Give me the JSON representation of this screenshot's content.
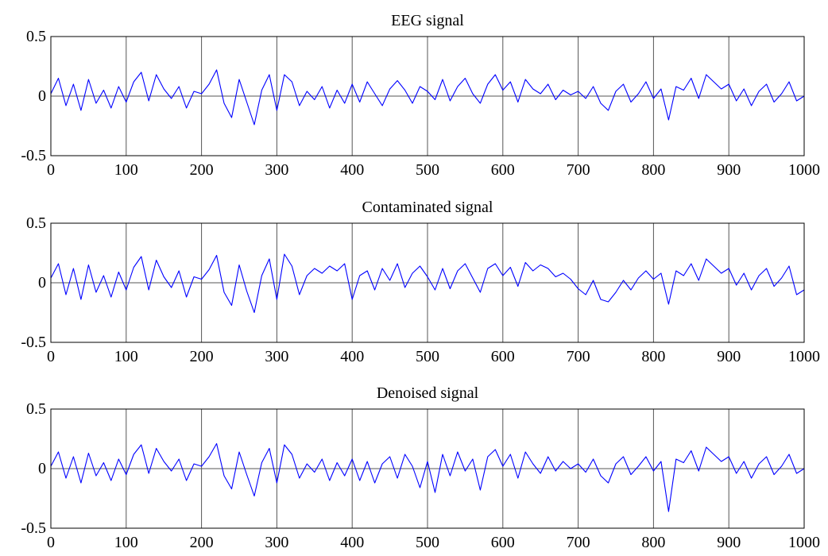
{
  "chart_data": [
    {
      "type": "line",
      "title": "EEG signal",
      "xlim": [
        0,
        1000
      ],
      "ylim": [
        -0.5,
        0.5
      ],
      "xticks": [
        "0",
        "100",
        "200",
        "300",
        "400",
        "500",
        "600",
        "700",
        "800",
        "900",
        "1000"
      ],
      "yticks": [
        "0.5",
        "0",
        "-0.5"
      ],
      "grid": "vertical",
      "color": "#0000ff",
      "series": [
        {
          "x": [
            0,
            10,
            20,
            30,
            40,
            50,
            60,
            70,
            80,
            90,
            100,
            110,
            120,
            130,
            140,
            150,
            160,
            170,
            180,
            190,
            200,
            210,
            220,
            230,
            240,
            250,
            260,
            270,
            280,
            290,
            300,
            310,
            320,
            330,
            340,
            350,
            360,
            370,
            380,
            390,
            400,
            410,
            420,
            430,
            440,
            450,
            460,
            470,
            480,
            490,
            500,
            510,
            520,
            530,
            540,
            550,
            560,
            570,
            580,
            590,
            600,
            610,
            620,
            630,
            640,
            650,
            660,
            670,
            680,
            690,
            700,
            710,
            720,
            730,
            740,
            750,
            760,
            770,
            780,
            790,
            800,
            810,
            820,
            830,
            840,
            850,
            860,
            870,
            880,
            890,
            900,
            910,
            920,
            930,
            940,
            950,
            960,
            970,
            980,
            990,
            1000
          ],
          "values": [
            0.02,
            0.15,
            -0.08,
            0.1,
            -0.12,
            0.14,
            -0.06,
            0.05,
            -0.1,
            0.08,
            -0.05,
            0.12,
            0.2,
            -0.04,
            0.18,
            0.06,
            -0.02,
            0.08,
            -0.1,
            0.04,
            0.02,
            0.1,
            0.22,
            -0.06,
            -0.18,
            0.14,
            -0.05,
            -0.24,
            0.05,
            0.18,
            -0.12,
            0.18,
            0.12,
            -0.08,
            0.04,
            -0.03,
            0.08,
            -0.1,
            0.05,
            -0.06,
            0.1,
            -0.05,
            0.12,
            0.02,
            -0.08,
            0.06,
            0.13,
            0.05,
            -0.06,
            0.08,
            0.04,
            -0.03,
            0.14,
            -0.04,
            0.08,
            0.15,
            0.02,
            -0.06,
            0.1,
            0.18,
            0.05,
            0.12,
            -0.05,
            0.14,
            0.06,
            0.02,
            0.1,
            -0.03,
            0.05,
            0.01,
            0.04,
            -0.02,
            0.08,
            -0.06,
            -0.12,
            0.04,
            0.1,
            -0.05,
            0.02,
            0.12,
            -0.02,
            0.06,
            -0.2,
            0.08,
            0.05,
            0.15,
            -0.02,
            0.18,
            0.12,
            0.06,
            0.1,
            -0.04,
            0.06,
            -0.08,
            0.04,
            0.1,
            -0.05,
            0.02,
            0.12,
            -0.04,
            0.0
          ]
        }
      ]
    },
    {
      "type": "line",
      "title": "Contaminated signal",
      "xlim": [
        0,
        1000
      ],
      "ylim": [
        -0.5,
        0.5
      ],
      "xticks": [
        "0",
        "100",
        "200",
        "300",
        "400",
        "500",
        "600",
        "700",
        "800",
        "900",
        "1000"
      ],
      "yticks": [
        "0.5",
        "0",
        "-0.5"
      ],
      "grid": "vertical",
      "color": "#0000ff",
      "series": [
        {
          "x": [
            0,
            10,
            20,
            30,
            40,
            50,
            60,
            70,
            80,
            90,
            100,
            110,
            120,
            130,
            140,
            150,
            160,
            170,
            180,
            190,
            200,
            210,
            220,
            230,
            240,
            250,
            260,
            270,
            280,
            290,
            300,
            310,
            320,
            330,
            340,
            350,
            360,
            370,
            380,
            390,
            400,
            410,
            420,
            430,
            440,
            450,
            460,
            470,
            480,
            490,
            500,
            510,
            520,
            530,
            540,
            550,
            560,
            570,
            580,
            590,
            600,
            610,
            620,
            630,
            640,
            650,
            660,
            670,
            680,
            690,
            700,
            710,
            720,
            730,
            740,
            750,
            760,
            770,
            780,
            790,
            800,
            810,
            820,
            830,
            840,
            850,
            860,
            870,
            880,
            890,
            900,
            910,
            920,
            930,
            940,
            950,
            960,
            970,
            980,
            990,
            1000
          ],
          "values": [
            0.04,
            0.16,
            -0.1,
            0.12,
            -0.14,
            0.15,
            -0.08,
            0.06,
            -0.12,
            0.09,
            -0.06,
            0.13,
            0.22,
            -0.06,
            0.19,
            0.05,
            -0.04,
            0.1,
            -0.12,
            0.05,
            0.03,
            0.11,
            0.23,
            -0.08,
            -0.19,
            0.15,
            -0.07,
            -0.25,
            0.06,
            0.2,
            -0.14,
            0.24,
            0.14,
            -0.1,
            0.06,
            0.12,
            0.08,
            0.14,
            0.1,
            0.16,
            -0.14,
            0.06,
            0.1,
            -0.06,
            0.12,
            0.02,
            0.16,
            -0.04,
            0.08,
            0.14,
            0.05,
            -0.06,
            0.12,
            -0.05,
            0.1,
            0.16,
            0.04,
            -0.08,
            0.12,
            0.16,
            0.06,
            0.13,
            -0.03,
            0.17,
            0.1,
            0.15,
            0.12,
            0.05,
            0.08,
            0.03,
            -0.05,
            -0.1,
            0.02,
            -0.14,
            -0.16,
            -0.08,
            0.02,
            -0.06,
            0.04,
            0.1,
            0.03,
            0.08,
            -0.18,
            0.1,
            0.06,
            0.16,
            0.02,
            0.2,
            0.14,
            0.08,
            0.12,
            -0.02,
            0.08,
            -0.06,
            0.06,
            0.12,
            -0.03,
            0.04,
            0.14,
            -0.1,
            -0.06
          ]
        }
      ]
    },
    {
      "type": "line",
      "title": "Denoised signal",
      "xlim": [
        0,
        1000
      ],
      "ylim": [
        -0.5,
        0.5
      ],
      "xticks": [
        "0",
        "100",
        "200",
        "300",
        "400",
        "500",
        "600",
        "700",
        "800",
        "900",
        "1000"
      ],
      "yticks": [
        "0.5",
        "0",
        "-0.5"
      ],
      "grid": "vertical",
      "color": "#0000ff",
      "series": [
        {
          "x": [
            0,
            10,
            20,
            30,
            40,
            50,
            60,
            70,
            80,
            90,
            100,
            110,
            120,
            130,
            140,
            150,
            160,
            170,
            180,
            190,
            200,
            210,
            220,
            230,
            240,
            250,
            260,
            270,
            280,
            290,
            300,
            310,
            320,
            330,
            340,
            350,
            360,
            370,
            380,
            390,
            400,
            410,
            420,
            430,
            440,
            450,
            460,
            470,
            480,
            490,
            500,
            510,
            520,
            530,
            540,
            550,
            560,
            570,
            580,
            590,
            600,
            610,
            620,
            630,
            640,
            650,
            660,
            670,
            680,
            690,
            700,
            710,
            720,
            730,
            740,
            750,
            760,
            770,
            780,
            790,
            800,
            810,
            820,
            830,
            840,
            850,
            860,
            870,
            880,
            890,
            900,
            910,
            920,
            930,
            940,
            950,
            960,
            970,
            980,
            990,
            1000
          ],
          "values": [
            0.02,
            0.14,
            -0.08,
            0.1,
            -0.12,
            0.13,
            -0.06,
            0.05,
            -0.1,
            0.08,
            -0.05,
            0.12,
            0.2,
            -0.04,
            0.17,
            0.06,
            -0.02,
            0.08,
            -0.1,
            0.04,
            0.02,
            0.1,
            0.21,
            -0.06,
            -0.17,
            0.14,
            -0.05,
            -0.23,
            0.05,
            0.17,
            -0.12,
            0.2,
            0.12,
            -0.08,
            0.04,
            -0.03,
            0.08,
            -0.1,
            0.05,
            -0.06,
            0.08,
            -0.1,
            0.06,
            -0.12,
            0.04,
            0.1,
            -0.08,
            0.12,
            0.02,
            -0.16,
            0.06,
            -0.2,
            0.12,
            -0.06,
            0.14,
            -0.02,
            0.08,
            -0.18,
            0.1,
            0.16,
            0.02,
            0.12,
            -0.08,
            0.14,
            0.04,
            -0.04,
            0.1,
            -0.02,
            0.06,
            0.0,
            0.04,
            -0.03,
            0.08,
            -0.06,
            -0.12,
            0.04,
            0.1,
            -0.05,
            0.02,
            0.1,
            -0.02,
            0.06,
            -0.36,
            0.08,
            0.05,
            0.15,
            -0.02,
            0.18,
            0.12,
            0.06,
            0.1,
            -0.04,
            0.06,
            -0.08,
            0.04,
            0.1,
            -0.05,
            0.02,
            0.12,
            -0.04,
            0.0
          ]
        }
      ]
    }
  ]
}
